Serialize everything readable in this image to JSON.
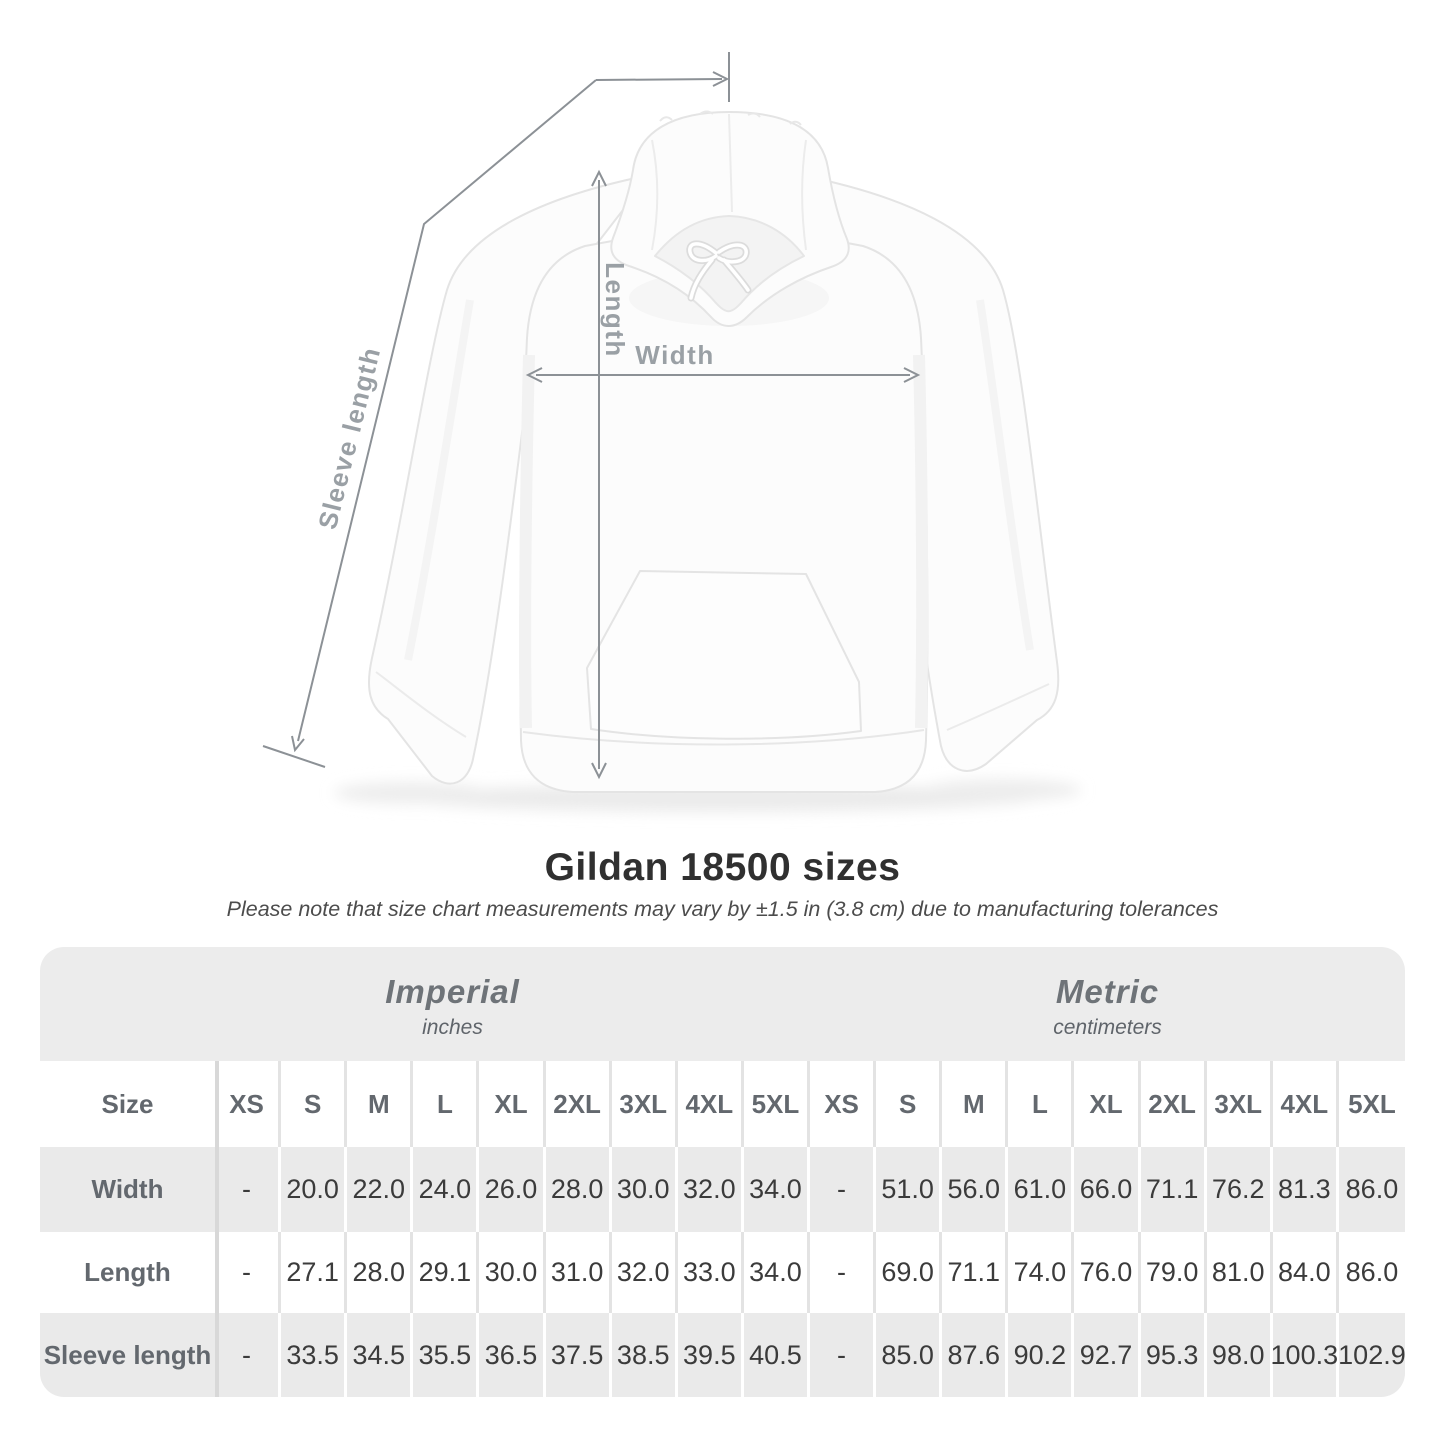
{
  "figure": {
    "length_label": "Length",
    "width_label": "Width",
    "sleeve_label": "Sleeve length"
  },
  "chart_data": {
    "type": "table",
    "title": "Gildan 18500 sizes",
    "subtitle": "Please note that size chart measurements may vary by ±1.5 in (3.8 cm) due to manufacturing tolerances",
    "size_header": "Size",
    "sizes": [
      "XS",
      "S",
      "M",
      "L",
      "XL",
      "2XL",
      "3XL",
      "4XL",
      "5XL"
    ],
    "sections": [
      {
        "label": "Imperial",
        "unit": "inches"
      },
      {
        "label": "Metric",
        "unit": "centimeters"
      }
    ],
    "rows": [
      {
        "label": "Width",
        "imperial": [
          "-",
          "20.0",
          "22.0",
          "24.0",
          "26.0",
          "28.0",
          "30.0",
          "32.0",
          "34.0"
        ],
        "metric": [
          "-",
          "51.0",
          "56.0",
          "61.0",
          "66.0",
          "71.1",
          "76.2",
          "81.3",
          "86.0"
        ]
      },
      {
        "label": "Length",
        "imperial": [
          "-",
          "27.1",
          "28.0",
          "29.1",
          "30.0",
          "31.0",
          "32.0",
          "33.0",
          "34.0"
        ],
        "metric": [
          "-",
          "69.0",
          "71.1",
          "74.0",
          "76.0",
          "79.0",
          "81.0",
          "84.0",
          "86.0"
        ]
      },
      {
        "label": "Sleeve length",
        "imperial": [
          "-",
          "33.5",
          "34.5",
          "35.5",
          "36.5",
          "37.5",
          "38.5",
          "39.5",
          "40.5"
        ],
        "metric": [
          "-",
          "85.0",
          "87.6",
          "90.2",
          "92.7",
          "95.3",
          "98.0",
          "100.3",
          "102.9"
        ]
      }
    ]
  },
  "colors": {
    "card_gray": "#ececec",
    "row_stripe_gray": "#eaeaea",
    "annotation_line": "#8c9196",
    "figure_label": "#9aa0a5",
    "header_text": "#63686e",
    "value_text": "#3b3b3b",
    "title_text": "#303030"
  }
}
